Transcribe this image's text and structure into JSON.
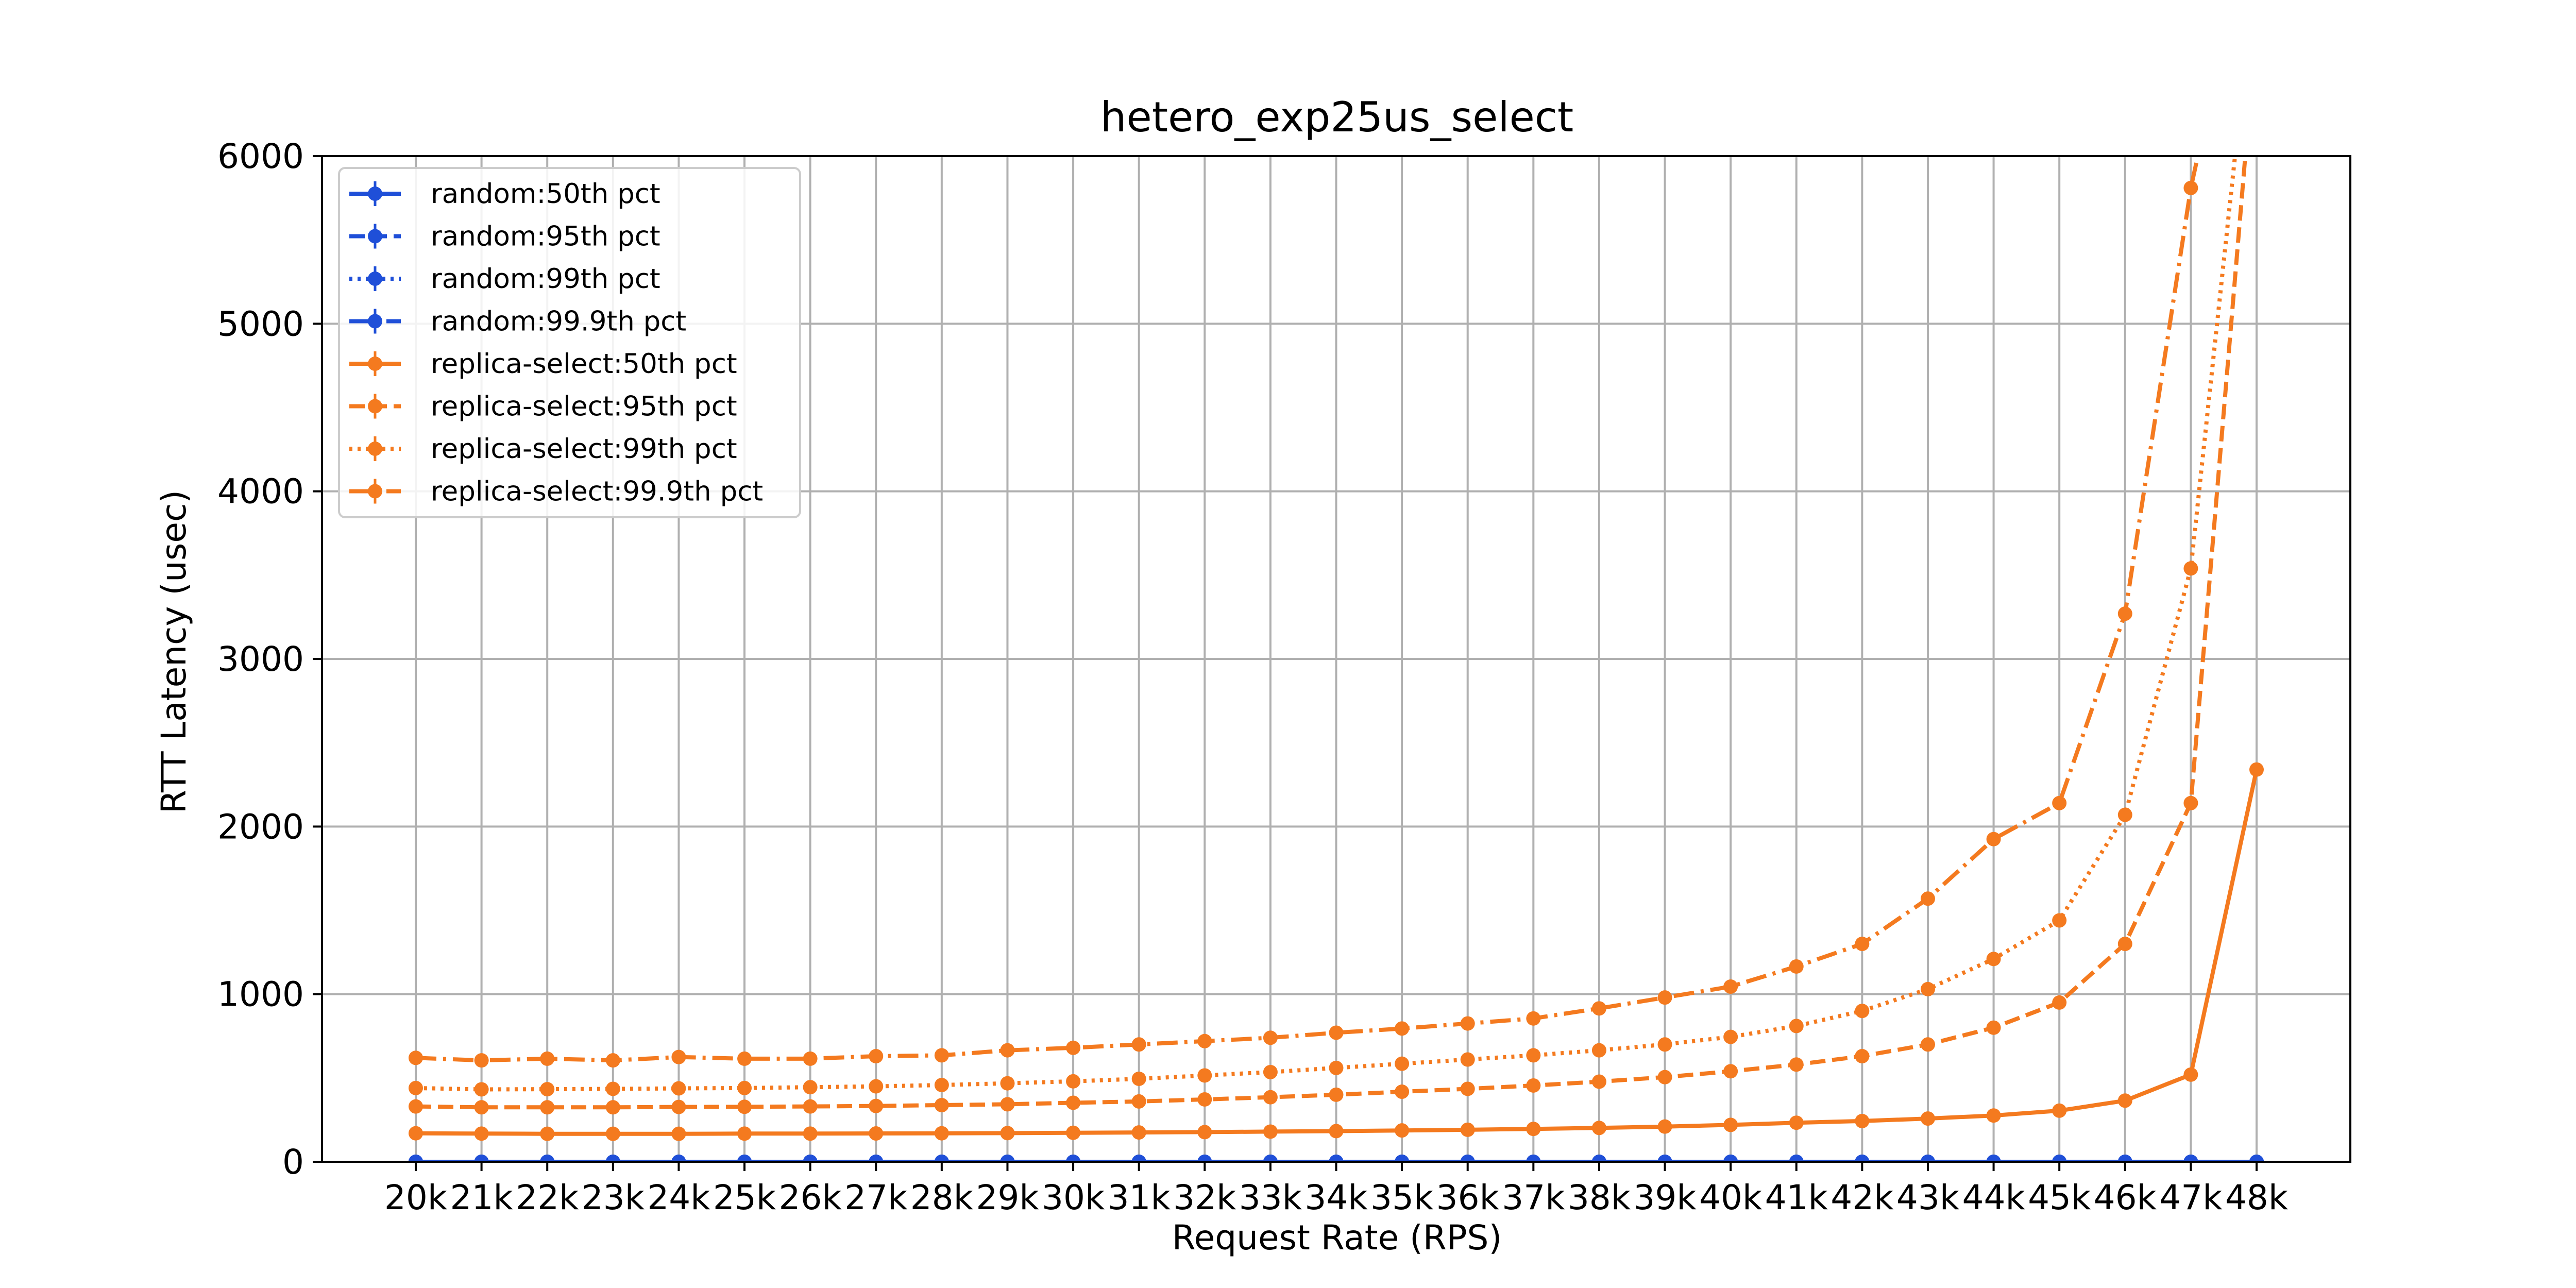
{
  "chart_data": {
    "type": "line",
    "title": "hetero_exp25us_select",
    "xlabel": "Request Rate (RPS)",
    "ylabel": "RTT Latency (usec)",
    "ylim": [
      0,
      6000
    ],
    "yticks": [
      0,
      1000,
      2000,
      3000,
      4000,
      5000,
      6000
    ],
    "categories": [
      "20k",
      "21k",
      "22k",
      "23k",
      "24k",
      "25k",
      "26k",
      "27k",
      "28k",
      "29k",
      "30k",
      "31k",
      "32k",
      "33k",
      "34k",
      "35k",
      "36k",
      "37k",
      "38k",
      "39k",
      "40k",
      "41k",
      "42k",
      "43k",
      "44k",
      "45k",
      "46k",
      "47k",
      "48k"
    ],
    "grid": true,
    "legend_position": "top-left",
    "series": [
      {
        "name": "random:50th pct",
        "color": "#1f4fd8",
        "dash": "solid",
        "values": [
          0,
          0,
          0,
          0,
          0,
          0,
          0,
          0,
          0,
          0,
          0,
          0,
          0,
          0,
          0,
          0,
          0,
          0,
          0,
          0,
          0,
          0,
          0,
          0,
          0,
          0,
          0,
          0,
          0
        ]
      },
      {
        "name": "random:95th pct",
        "color": "#1f4fd8",
        "dash": "dashed",
        "values": [
          0,
          0,
          0,
          0,
          0,
          0,
          0,
          0,
          0,
          0,
          0,
          0,
          0,
          0,
          0,
          0,
          0,
          0,
          0,
          0,
          0,
          0,
          0,
          0,
          0,
          0,
          0,
          0,
          0
        ]
      },
      {
        "name": "random:99th pct",
        "color": "#1f4fd8",
        "dash": "dotted",
        "values": [
          0,
          0,
          0,
          0,
          0,
          0,
          0,
          0,
          0,
          0,
          0,
          0,
          0,
          0,
          0,
          0,
          0,
          0,
          0,
          0,
          0,
          0,
          0,
          0,
          0,
          0,
          0,
          0,
          0
        ]
      },
      {
        "name": "random:99.9th pct",
        "color": "#1f4fd8",
        "dash": "dashdot",
        "values": [
          0,
          0,
          0,
          0,
          0,
          0,
          0,
          0,
          0,
          0,
          0,
          0,
          0,
          0,
          0,
          0,
          0,
          0,
          0,
          0,
          0,
          0,
          0,
          0,
          0,
          0,
          0,
          0,
          0
        ]
      },
      {
        "name": "replica-select:50th pct",
        "color": "#f47a1f",
        "dash": "solid",
        "values": [
          170,
          168,
          167,
          167,
          167,
          168,
          168,
          169,
          170,
          171,
          173,
          175,
          177,
          180,
          183,
          187,
          191,
          196,
          202,
          210,
          220,
          233,
          243,
          258,
          276,
          305,
          365,
          520,
          2340
        ]
      },
      {
        "name": "replica-select:95th pct",
        "color": "#f47a1f",
        "dash": "dashed",
        "values": [
          330,
          325,
          325,
          325,
          327,
          328,
          330,
          333,
          338,
          343,
          352,
          360,
          372,
          385,
          400,
          418,
          435,
          455,
          478,
          505,
          540,
          580,
          630,
          700,
          800,
          950,
          1300,
          2140,
          6800
        ]
      },
      {
        "name": "replica-select:99th pct",
        "color": "#f47a1f",
        "dash": "dotted",
        "values": [
          440,
          432,
          433,
          435,
          438,
          440,
          445,
          450,
          458,
          468,
          480,
          495,
          515,
          535,
          560,
          585,
          610,
          635,
          665,
          700,
          745,
          810,
          900,
          1030,
          1210,
          1440,
          2070,
          3540,
          7200
        ]
      },
      {
        "name": "replica-select:99.9th pct",
        "color": "#f47a1f",
        "dash": "dashdot",
        "values": [
          620,
          605,
          615,
          605,
          625,
          615,
          615,
          630,
          635,
          665,
          680,
          700,
          720,
          740,
          770,
          795,
          825,
          855,
          915,
          980,
          1045,
          1165,
          1300,
          1570,
          1925,
          2140,
          3270,
          5810,
          7600
        ]
      }
    ]
  }
}
